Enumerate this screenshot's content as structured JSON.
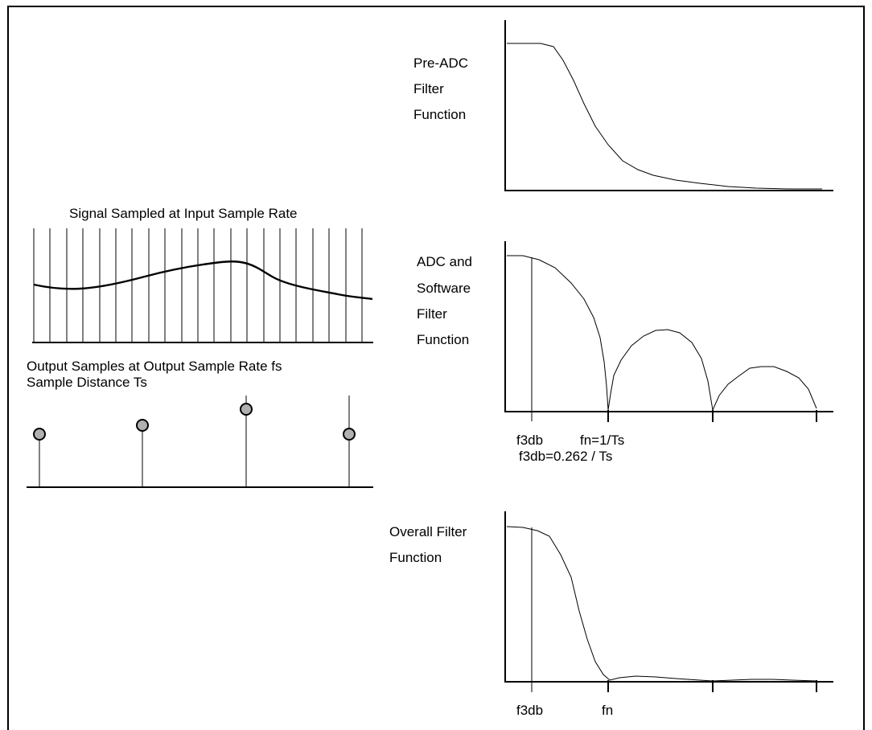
{
  "colors": {
    "ink": "#000000",
    "sample_dot_fill": "#b0b0b0",
    "background": "#ffffff"
  },
  "left": {
    "input_title": "Signal Sampled at Input Sample Rate",
    "output_title_1": "Output Samples at Output Sample Rate fs",
    "output_title_2": "Sample Distance Ts"
  },
  "plots": {
    "pre_adc": {
      "label_lines": [
        "Pre-ADC",
        "Filter",
        "Function"
      ]
    },
    "adc_software": {
      "label_lines": [
        "ADC and",
        "Software",
        "Filter",
        "Function"
      ],
      "tick_label_f3db": "f3db",
      "tick_label_fn": "fn=1/Ts",
      "formula": "f3db=0.262 / Ts"
    },
    "overall": {
      "label_lines": [
        "Overall Filter",
        "Function"
      ],
      "tick_label_f3db": "f3db",
      "tick_label_fn": "fn"
    }
  }
}
